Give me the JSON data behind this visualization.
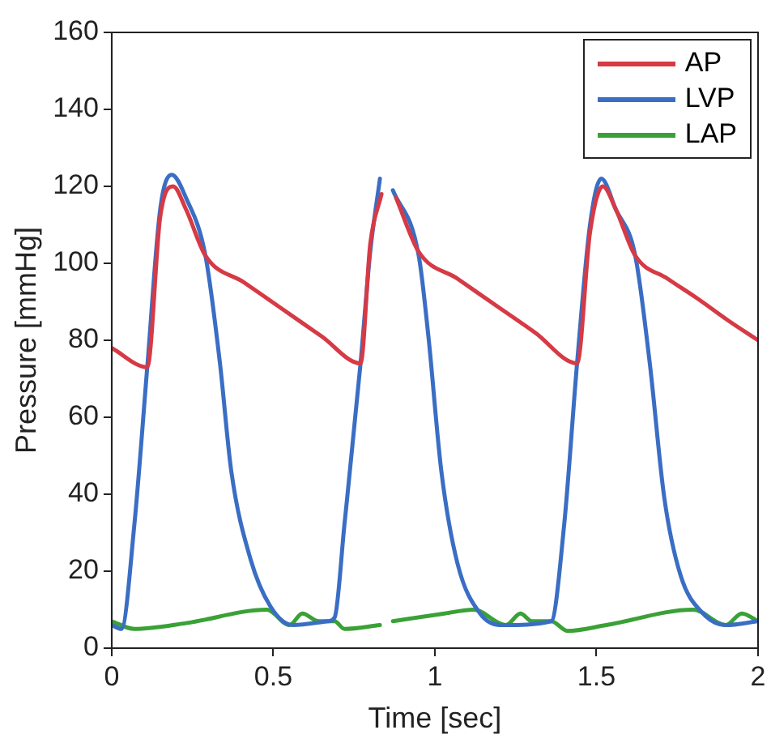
{
  "chart_data": {
    "type": "line",
    "xlabel": "Time [sec]",
    "ylabel": "Pressure [mmHg]",
    "xlim": [
      0,
      2
    ],
    "ylim": [
      0,
      160
    ],
    "xticks": [
      0,
      0.5,
      1,
      1.5,
      2
    ],
    "yticks": [
      0,
      20,
      40,
      60,
      80,
      100,
      120,
      140,
      160
    ],
    "grid": false,
    "legend": "top right",
    "marker": "none",
    "line_style": "solid",
    "series": [
      {
        "name": "AP",
        "color": "#d63a45",
        "x": [
          0,
          0.11,
          0.15,
          0.19,
          0.23,
          0.29,
          0.41,
          0.53,
          0.65,
          0.77,
          0.8,
          0.835,
          0.85,
          0.88,
          0.95,
          1.07,
          1.19,
          1.31,
          1.44,
          1.48,
          1.52,
          1.56,
          1.62,
          1.72,
          1.81,
          1.91,
          2.0
        ],
        "values": [
          78,
          73,
          112,
          120,
          114,
          102,
          95,
          88,
          81,
          74,
          105,
          118,
          null,
          117,
          103,
          96,
          89,
          82,
          74,
          108,
          120,
          114,
          102,
          96,
          91,
          85,
          80
        ]
      },
      {
        "name": "LVP",
        "color": "#3a6ec4",
        "x": [
          0,
          0.03,
          0.07,
          0.11,
          0.15,
          0.186,
          0.23,
          0.29,
          0.335,
          0.37,
          0.43,
          0.49,
          0.56,
          0.67,
          0.69,
          0.72,
          0.77,
          0.8,
          0.83,
          0.85,
          0.87,
          0.95,
          0.98,
          1.02,
          1.07,
          1.14,
          1.21,
          1.36,
          1.4,
          1.44,
          1.48,
          1.515,
          1.56,
          1.62,
          1.665,
          1.71,
          1.76,
          1.83,
          1.9,
          2.0
        ],
        "values": [
          6,
          5,
          32,
          73,
          114,
          123,
          117,
          102,
          74,
          46,
          23,
          11,
          6,
          7,
          8,
          32,
          74,
          103,
          122,
          null,
          119,
          102,
          81,
          46,
          22,
          9,
          6,
          7,
          32,
          74,
          110,
          122,
          114,
          102,
          74,
          39,
          19,
          9,
          6,
          7
        ]
      },
      {
        "name": "LAP",
        "color": "#3aa136",
        "x": [
          0,
          0.07,
          0.23,
          0.48,
          0.55,
          0.59,
          0.64,
          0.69,
          0.72,
          0.83,
          0.85,
          0.87,
          1.03,
          1.12,
          1.22,
          1.265,
          1.3,
          1.36,
          1.41,
          1.53,
          1.8,
          1.9,
          1.95,
          2.0
        ],
        "values": [
          7,
          5,
          6.5,
          10,
          6,
          9,
          7,
          7,
          5,
          6,
          null,
          7,
          9,
          10,
          6,
          9,
          7,
          7,
          4.5,
          6,
          10,
          6,
          9,
          7
        ]
      }
    ]
  }
}
